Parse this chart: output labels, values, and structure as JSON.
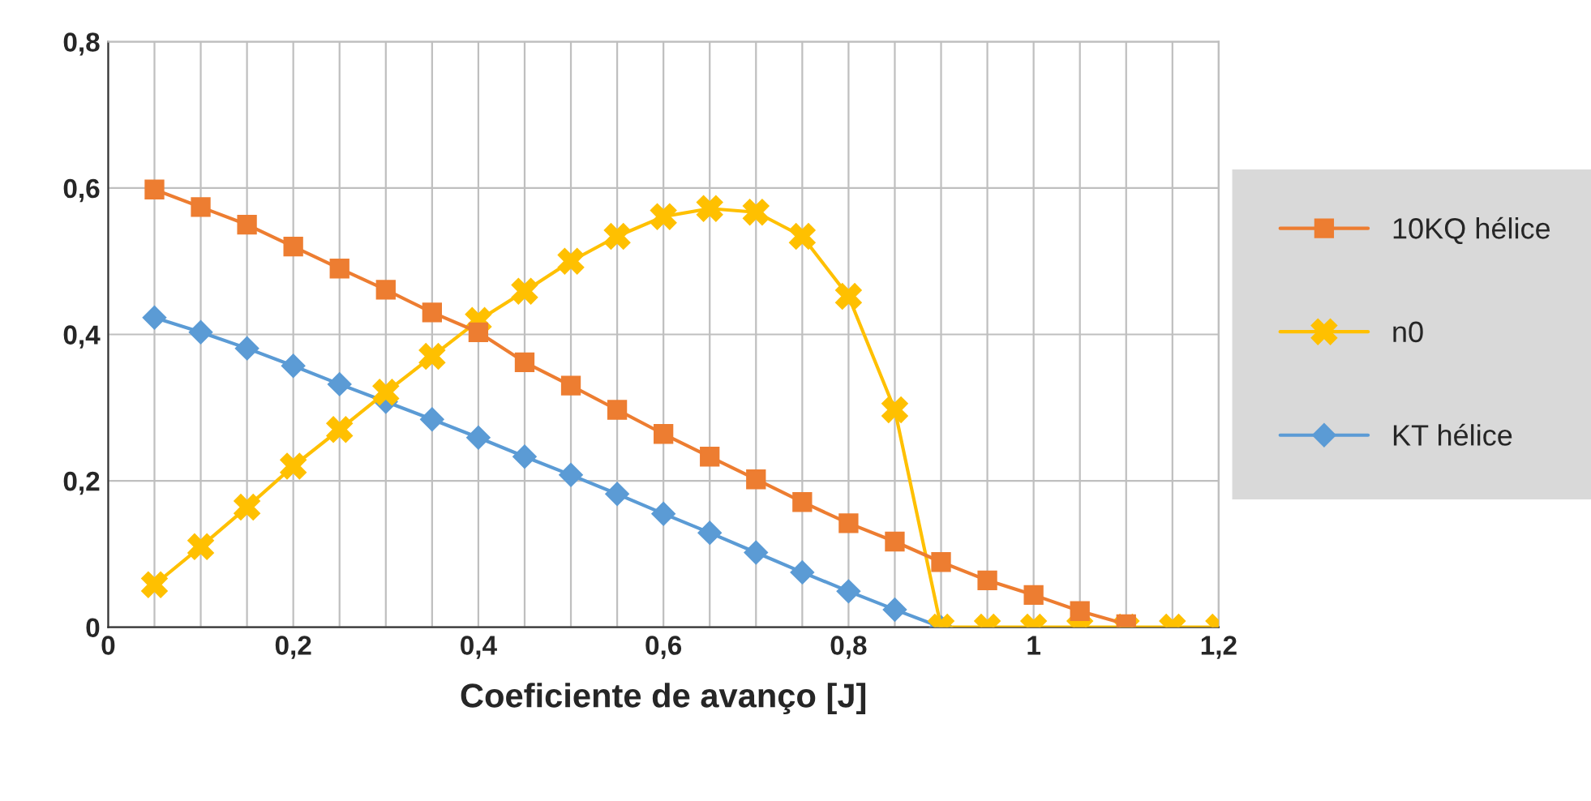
{
  "chart_data": {
    "type": "line",
    "xlabel": "Coeficiente de avanço [J]",
    "xlim": [
      0,
      1.2
    ],
    "ylim": [
      0,
      0.8
    ],
    "xticks": [
      0,
      {
        "value": 0.05,
        "label": null
      },
      {
        "value": 0.1,
        "label": null
      },
      {
        "value": 0.15,
        "label": null
      },
      {
        "value": 0.2,
        "label": "0,2"
      },
      {
        "value": 0.25,
        "label": null
      },
      {
        "value": 0.3,
        "label": null
      },
      {
        "value": 0.35,
        "label": null
      },
      {
        "value": 0.4,
        "label": "0,4"
      },
      {
        "value": 0.45,
        "label": null
      },
      {
        "value": 0.5,
        "label": null
      },
      {
        "value": 0.55,
        "label": null
      },
      {
        "value": 0.6,
        "label": "0,6"
      },
      {
        "value": 0.65,
        "label": null
      },
      {
        "value": 0.7,
        "label": null
      },
      {
        "value": 0.75,
        "label": null
      },
      {
        "value": 0.8,
        "label": "0,8"
      },
      {
        "value": 0.85,
        "label": null
      },
      {
        "value": 0.9,
        "label": null
      },
      {
        "value": 0.95,
        "label": null
      },
      {
        "value": 1.0,
        "label": "1"
      },
      {
        "value": 1.05,
        "label": null
      },
      {
        "value": 1.1,
        "label": null
      },
      {
        "value": 1.15,
        "label": null
      },
      {
        "value": 1.2,
        "label": "1,2"
      }
    ],
    "yticks": [
      0,
      {
        "value": 0.2,
        "label": "0,2"
      },
      {
        "value": 0.4,
        "label": "0,4"
      },
      {
        "value": 0.6,
        "label": "0,6"
      },
      {
        "value": 0.8,
        "label": "0,8"
      }
    ],
    "grid": true,
    "legend": "right",
    "line_style": "solid",
    "series": [
      {
        "name": "10KQ hélice",
        "color": "#ed7d31",
        "marker": "square",
        "x": [
          0.05,
          0.1,
          0.15,
          0.2,
          0.25,
          0.3,
          0.35,
          0.4,
          0.45,
          0.5,
          0.55,
          0.6,
          0.65,
          0.7,
          0.75,
          0.8,
          0.85,
          0.9,
          0.95,
          1.0,
          1.05,
          1.1
        ],
        "values": [
          0.598,
          0.574,
          0.55,
          0.52,
          0.49,
          0.461,
          0.43,
          0.403,
          0.362,
          0.33,
          0.297,
          0.264,
          0.233,
          0.202,
          0.171,
          0.142,
          0.117,
          0.089,
          0.064,
          0.044,
          0.022,
          0.004
        ]
      },
      {
        "name": "n0",
        "color": "#ffc000",
        "marker": "cross",
        "x": [
          0.05,
          0.1,
          0.15,
          0.2,
          0.25,
          0.3,
          0.35,
          0.4,
          0.45,
          0.5,
          0.55,
          0.6,
          0.65,
          0.7,
          0.75,
          0.8,
          0.85,
          0.9,
          0.95,
          1.0,
          1.05,
          1.1,
          1.15,
          1.2
        ],
        "values": [
          0.058,
          0.11,
          0.164,
          0.22,
          0.27,
          0.321,
          0.37,
          0.419,
          0.459,
          0.5,
          0.534,
          0.561,
          0.572,
          0.567,
          0.534,
          0.452,
          0.297,
          0,
          0,
          0,
          0,
          0,
          0,
          0
        ]
      },
      {
        "name": "KT hélice",
        "color": "#5b9bd5",
        "marker": "diamond",
        "x": [
          0.05,
          0.1,
          0.15,
          0.2,
          0.25,
          0.3,
          0.35,
          0.4,
          0.45,
          0.5,
          0.55,
          0.6,
          0.65,
          0.7,
          0.75,
          0.8,
          0.85,
          0.9
        ],
        "values": [
          0.423,
          0.403,
          0.381,
          0.357,
          0.332,
          0.308,
          0.284,
          0.259,
          0.233,
          0.208,
          0.182,
          0.155,
          0.129,
          0.102,
          0.075,
          0.049,
          0.024,
          0
        ]
      }
    ]
  }
}
